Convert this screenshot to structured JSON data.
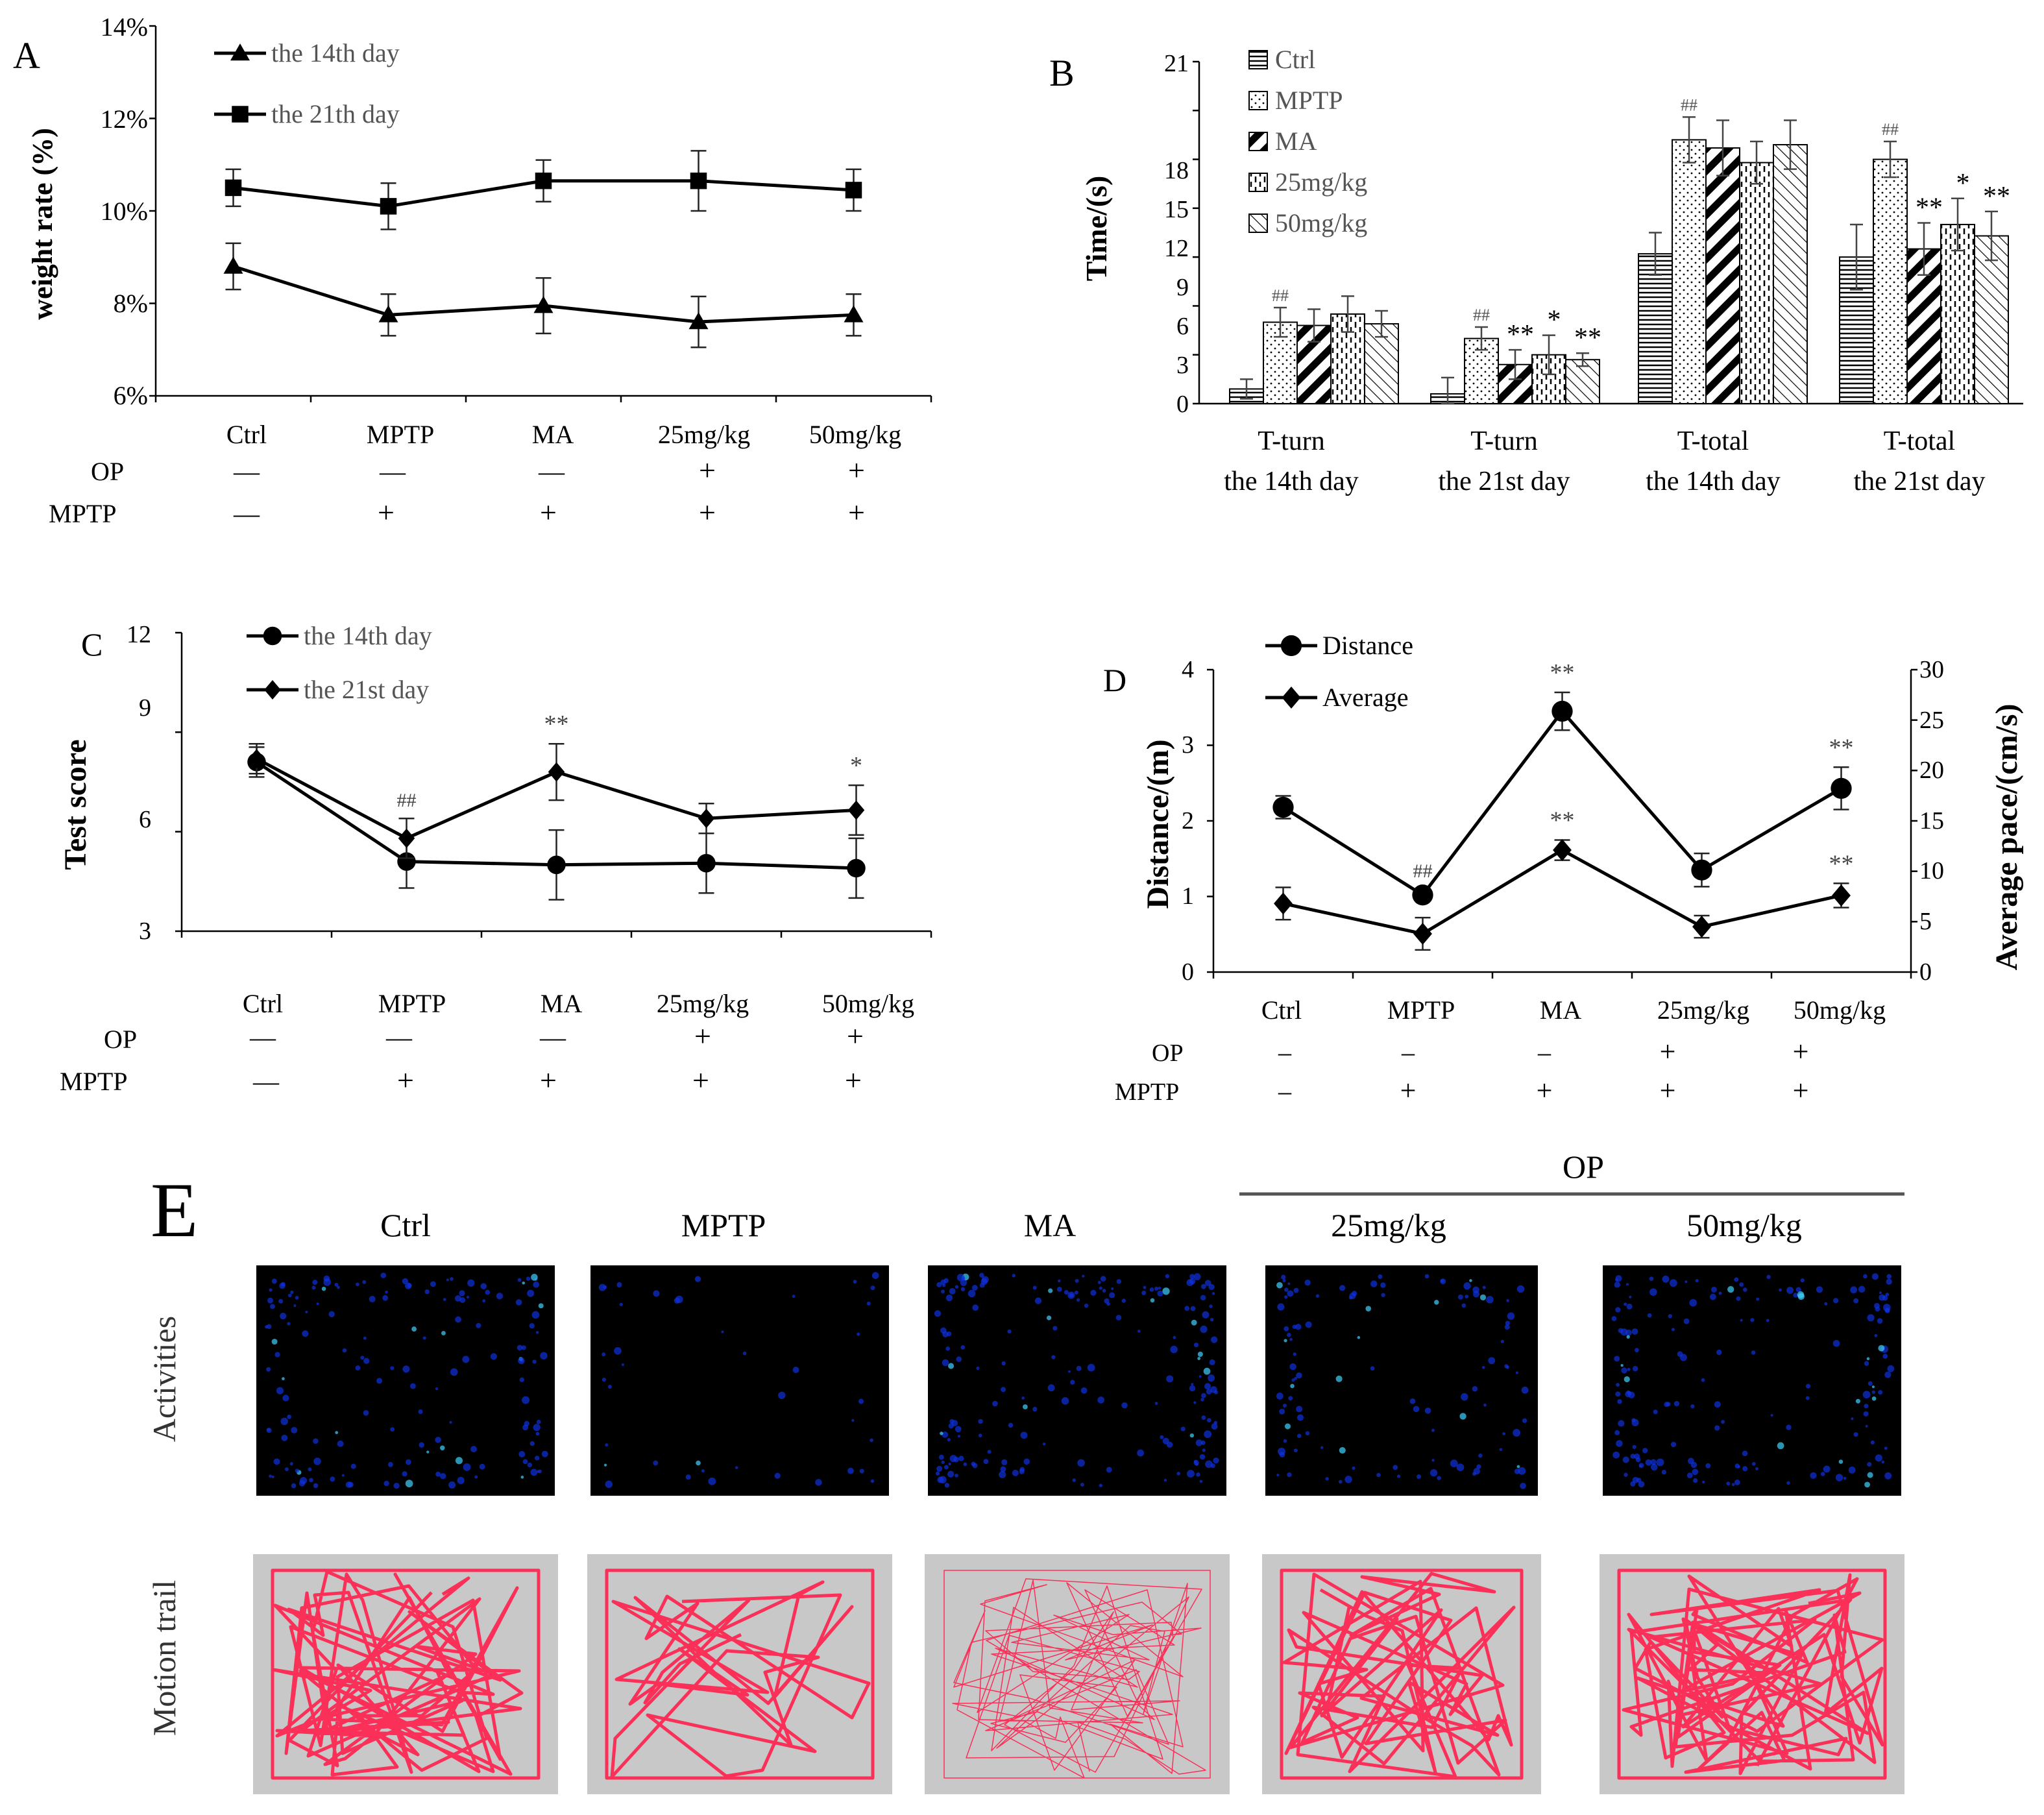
{
  "panels": {
    "A": {
      "label": "A",
      "ylabel": "weight rate (%)",
      "yticks": [
        "6%",
        "8%",
        "10%",
        "12%",
        "14%"
      ],
      "groups": [
        "Ctrl",
        "MPTP",
        "MA",
        "25mg/kg",
        "50mg/kg"
      ],
      "op_label": "OP",
      "mptp_label": "MPTP",
      "op_signs": [
        "—",
        "—",
        "—",
        "+",
        "+"
      ],
      "mptp_signs": [
        "—",
        "+",
        "+",
        "+",
        "+"
      ]
    },
    "B": {
      "label": "B",
      "ylabel": "Time/(s)",
      "yticks": [
        "0",
        "3",
        "6",
        "9",
        "12",
        "15",
        "18",
        "21"
      ],
      "group_line1": [
        "T-turn",
        "T-turn",
        "T-total",
        "T-total"
      ],
      "group_line2": [
        "the 14th day",
        "the 21st day",
        "the 14th day",
        "the 21st day"
      ]
    },
    "C": {
      "label": "C",
      "ylabel": "Test  score",
      "yticks": [
        "3",
        "6",
        "9",
        "12"
      ],
      "groups": [
        "Ctrl",
        "MPTP",
        "MA",
        "25mg/kg",
        "50mg/kg"
      ],
      "op_label": "OP",
      "mptp_label": "MPTP",
      "op_signs": [
        "—",
        "—",
        "—",
        "+",
        "+"
      ],
      "mptp_signs": [
        "—",
        "+",
        "+",
        "+",
        "+"
      ]
    },
    "D": {
      "label": "D",
      "ylabel": "Distance/(m)",
      "y2label": "Average  pace/(cm/s)",
      "yticks": [
        "0",
        "1",
        "2",
        "3",
        "4"
      ],
      "y2ticks": [
        "0",
        "5",
        "10",
        "15",
        "20",
        "25",
        "30"
      ],
      "groups": [
        "Ctrl",
        "MPTP",
        "MA",
        "25mg/kg",
        "50mg/kg"
      ],
      "op_label": "OP",
      "mptp_label": "MPTP",
      "op_signs": [
        "–",
        "–",
        "–",
        "+",
        "+"
      ],
      "mptp_signs": [
        "–",
        "+",
        "+",
        "+",
        "+"
      ]
    },
    "E": {
      "label": "E",
      "op_header": "OP",
      "columns": [
        "Ctrl",
        "MPTP",
        "MA",
        "25mg/kg",
        "50mg/kg"
      ],
      "row_labels": [
        "Activities",
        "Motion trail"
      ],
      "heatmap_color": "#00008f",
      "trail_color": "#ff1f4b",
      "trail_bg": "#c8c8c8"
    }
  },
  "chart_data": [
    {
      "panel": "A",
      "type": "line",
      "ylim": [
        6,
        14
      ],
      "ylabel": "weight rate (%)",
      "categories": [
        "Ctrl",
        "MPTP",
        "MA",
        "25mg/kg",
        "50mg/kg"
      ],
      "series": [
        {
          "name": "the 14th day",
          "marker": "triangle",
          "values": [
            8.8,
            7.75,
            7.95,
            7.6,
            7.75
          ],
          "errors": [
            0.5,
            0.45,
            0.6,
            0.55,
            0.45
          ]
        },
        {
          "name": "the 21th day",
          "marker": "square",
          "values": [
            10.5,
            10.1,
            10.65,
            10.65,
            10.45
          ],
          "errors": [
            0.4,
            0.5,
            0.45,
            0.65,
            0.45
          ]
        }
      ]
    },
    {
      "panel": "B",
      "type": "bar",
      "ylim": [
        0,
        21
      ],
      "ylabel": "Time/(s)",
      "categories": [
        "T-turn the 14th day",
        "T-turn the 21st day",
        "T-total the 14th day",
        "T-total the 21st day"
      ],
      "series": [
        {
          "name": "Ctrl",
          "values": [
            0.9,
            0.6,
            9.2,
            9.0
          ],
          "errors": [
            0.6,
            1.0,
            1.3,
            2.0
          ],
          "annotations": [
            "",
            "",
            "",
            ""
          ]
        },
        {
          "name": "MPTP",
          "values": [
            5.0,
            4.0,
            16.2,
            15.0
          ],
          "errors": [
            0.9,
            0.7,
            1.4,
            1.1
          ],
          "annotations": [
            "##",
            "##",
            "##",
            "##"
          ]
        },
        {
          "name": "MA",
          "values": [
            4.8,
            2.4,
            15.7,
            9.5
          ],
          "errors": [
            1.0,
            0.9,
            1.7,
            1.6
          ],
          "annotations": [
            "",
            "**",
            "",
            "**"
          ]
        },
        {
          "name": "25mg/kg",
          "values": [
            5.5,
            3.0,
            14.8,
            11.0
          ],
          "errors": [
            1.1,
            1.2,
            1.3,
            1.6
          ],
          "annotations": [
            "",
            "*",
            "",
            "*"
          ]
        },
        {
          "name": "50mg/kg",
          "values": [
            4.9,
            2.7,
            15.9,
            10.3
          ],
          "errors": [
            0.8,
            0.4,
            1.5,
            1.5
          ],
          "annotations": [
            "",
            "**",
            "",
            "**"
          ]
        }
      ]
    },
    {
      "panel": "C",
      "type": "line",
      "ylim": [
        3,
        12
      ],
      "ylabel": "Test  score",
      "categories": [
        "Ctrl",
        "MPTP",
        "MA",
        "25mg/kg",
        "50mg/kg"
      ],
      "series": [
        {
          "name": "the 14th day",
          "marker": "circle",
          "values": [
            8.1,
            5.1,
            5.0,
            5.05,
            4.9
          ],
          "errors": [
            0.45,
            0.8,
            1.05,
            0.9,
            0.9
          ],
          "annotations": [
            "",
            "",
            "",
            "",
            ""
          ]
        },
        {
          "name": "the 21st day",
          "marker": "diamond",
          "values": [
            8.2,
            5.8,
            7.8,
            6.4,
            6.65
          ],
          "errors": [
            0.45,
            0.6,
            0.85,
            0.45,
            0.75
          ],
          "annotations": [
            "",
            "##",
            "**",
            "",
            "*"
          ]
        }
      ]
    },
    {
      "panel": "D",
      "type": "line",
      "ylim": [
        0,
        4
      ],
      "y2lim": [
        0,
        30
      ],
      "ylabel": "Distance/(m)",
      "y2label": "Average  pace/(cm/s)",
      "categories": [
        "Ctrl",
        "MPTP",
        "MA",
        "25mg/kg",
        "50mg/kg"
      ],
      "series": [
        {
          "name": "Distance",
          "axis": "left",
          "marker": "circle",
          "values": [
            2.18,
            1.02,
            3.45,
            1.35,
            2.43
          ],
          "errors": [
            0.15,
            0.08,
            0.25,
            0.22,
            0.28
          ],
          "annotations": [
            "",
            "##",
            "**",
            "",
            "**"
          ]
        },
        {
          "name": "Average",
          "axis": "right",
          "marker": "diamond",
          "values": [
            6.8,
            3.8,
            12.1,
            4.5,
            7.6
          ],
          "errors": [
            1.6,
            1.6,
            1.0,
            1.1,
            1.2
          ],
          "annotations": [
            "",
            "",
            "**",
            "",
            "**"
          ]
        }
      ]
    }
  ]
}
